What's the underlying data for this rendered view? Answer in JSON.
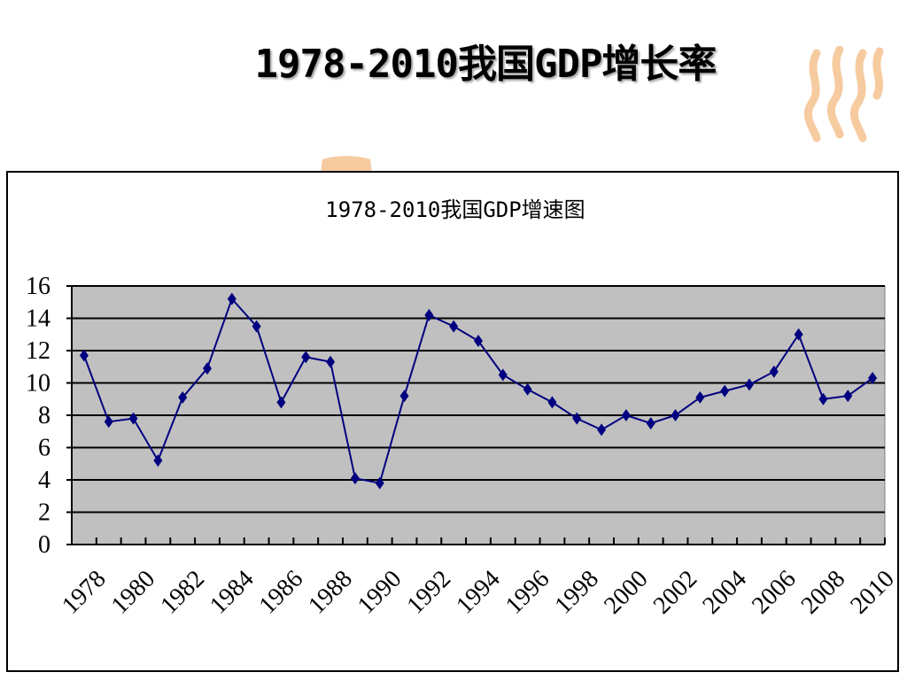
{
  "slide": {
    "title": "1978-2010我国GDP增长率"
  },
  "colors": {
    "plot_background": "#c0c0c0",
    "series_line": "#000080",
    "decoration": "#f6cba0"
  },
  "chart_data": {
    "type": "line",
    "title": "1978-2010我国GDP增速图",
    "xlabel": "",
    "ylabel": "",
    "x": [
      1978,
      1979,
      1980,
      1981,
      1982,
      1983,
      1984,
      1985,
      1986,
      1987,
      1988,
      1989,
      1990,
      1991,
      1992,
      1993,
      1994,
      1995,
      1996,
      1997,
      1998,
      1999,
      2000,
      2001,
      2002,
      2003,
      2004,
      2005,
      2006,
      2007,
      2008,
      2009,
      2010
    ],
    "x_tick_labels": [
      "1978",
      "1980",
      "1982",
      "1984",
      "1986",
      "1988",
      "1990",
      "1992",
      "1994",
      "1996",
      "1998",
      "2000",
      "2002",
      "2004",
      "2006",
      "2008",
      "2010"
    ],
    "y_ticks": [
      "0",
      "2",
      "4",
      "6",
      "8",
      "10",
      "12",
      "14",
      "16"
    ],
    "ylim": [
      0,
      16
    ],
    "grid": true,
    "legend": "none",
    "series": [
      {
        "marker": "diamond",
        "values": [
          11.7,
          7.6,
          7.8,
          5.2,
          9.1,
          10.9,
          15.2,
          13.5,
          8.8,
          11.6,
          11.3,
          4.1,
          3.8,
          9.2,
          14.2,
          13.5,
          12.6,
          10.5,
          9.6,
          8.8,
          7.8,
          7.1,
          8.0,
          7.5,
          8.0,
          9.1,
          9.5,
          9.9,
          10.7,
          13.0,
          9.0,
          9.2,
          10.3
        ]
      }
    ]
  }
}
